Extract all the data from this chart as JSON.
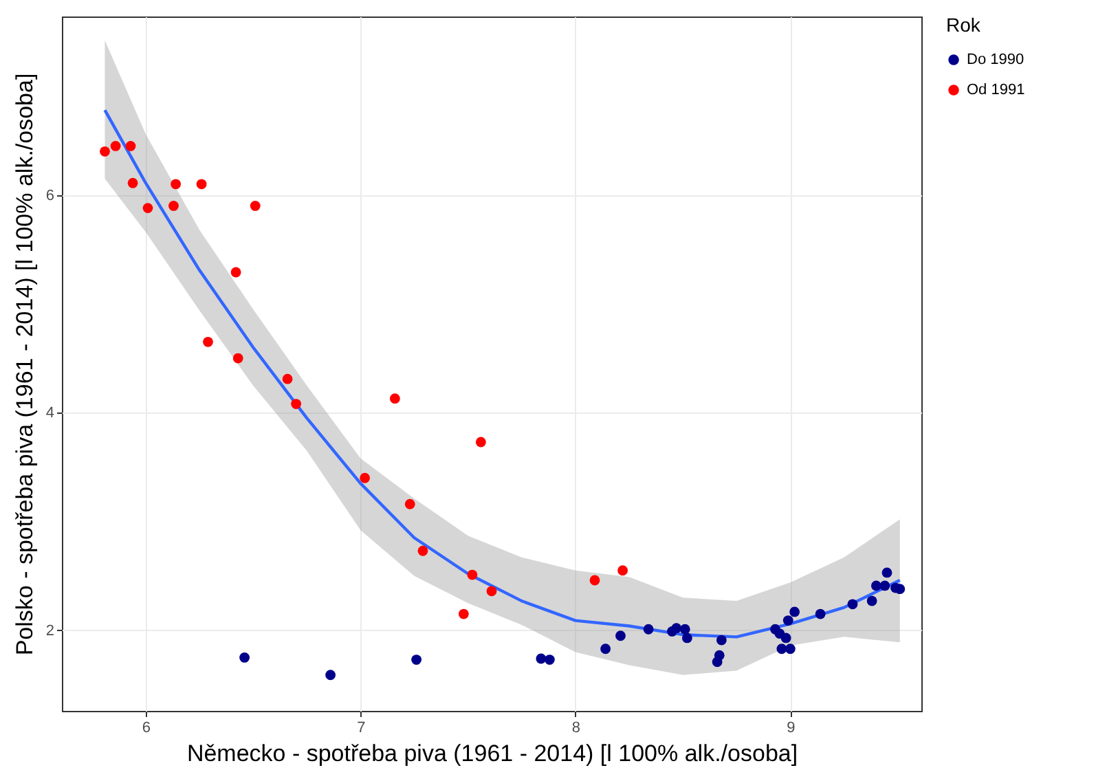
{
  "chart_data": {
    "type": "scatter",
    "xlabel": "Německo - spotřeba piva (1961 - 2014)  [l 100% alk./osoba]",
    "ylabel": "Polsko -  spotřeba piva (1961 - 2014)  [l 100% alk./osoba]",
    "legend_title": "Rok",
    "legend": "right",
    "grid": true,
    "marker": "circle",
    "xlim": [
      5.61,
      9.61
    ],
    "ylim": [
      1.26,
      7.64
    ],
    "xticks": [
      6,
      7,
      8,
      9
    ],
    "yticks": [
      2,
      4,
      6
    ],
    "series": [
      {
        "type": "line",
        "color": "#3366ff",
        "line_style": "solid",
        "marker": "none",
        "x": [
          5.81,
          6.0,
          6.25,
          6.5,
          6.75,
          7.0,
          7.25,
          7.5,
          7.75,
          8.0,
          8.25,
          8.5,
          8.75,
          9.0,
          9.25,
          9.51
        ],
        "values": [
          6.78,
          6.11,
          5.31,
          4.6,
          3.95,
          3.35,
          2.85,
          2.52,
          2.27,
          2.09,
          2.04,
          1.96,
          1.94,
          2.06,
          2.21,
          2.46
        ],
        "upper": [
          7.42,
          6.56,
          5.68,
          4.95,
          4.25,
          3.58,
          3.21,
          2.87,
          2.67,
          2.55,
          2.49,
          2.3,
          2.27,
          2.44,
          2.67,
          3.02
        ],
        "lower": [
          6.15,
          5.66,
          4.94,
          4.25,
          3.65,
          2.92,
          2.5,
          2.25,
          2.05,
          1.8,
          1.68,
          1.59,
          1.63,
          1.86,
          1.94,
          1.89
        ]
      },
      {
        "name": "Do 1990",
        "color": "#00008b",
        "x": [
          6.46,
          6.86,
          7.26,
          7.84,
          7.88,
          8.14,
          8.21,
          8.34,
          8.45,
          8.47,
          8.51,
          8.52,
          8.66,
          8.67,
          8.68,
          8.93,
          8.95,
          8.98,
          8.96,
          9.0,
          8.99,
          9.02,
          9.14,
          9.29,
          9.38,
          9.4,
          9.44,
          9.45,
          9.49,
          9.51
        ],
        "values": [
          1.75,
          1.59,
          1.73,
          1.74,
          1.73,
          1.83,
          1.95,
          2.01,
          1.99,
          2.02,
          2.01,
          1.93,
          1.71,
          1.77,
          1.91,
          2.01,
          1.97,
          1.93,
          1.83,
          1.83,
          2.09,
          2.17,
          2.15,
          2.24,
          2.27,
          2.41,
          2.41,
          2.53,
          2.39,
          2.38
        ]
      },
      {
        "name": "Od 1991",
        "color": "#ff0000",
        "x": [
          5.81,
          5.86,
          5.93,
          5.94,
          6.01,
          6.13,
          6.14,
          6.26,
          6.51,
          6.42,
          6.29,
          6.43,
          6.66,
          6.7,
          7.16,
          7.56,
          7.02,
          7.23,
          7.29,
          7.52,
          7.61,
          7.48,
          8.09,
          8.22
        ],
        "values": [
          6.4,
          6.45,
          6.45,
          6.11,
          5.88,
          5.9,
          6.1,
          6.1,
          5.9,
          5.29,
          4.65,
          4.5,
          4.31,
          4.08,
          4.13,
          3.73,
          3.4,
          3.16,
          2.73,
          2.51,
          2.36,
          2.15,
          2.46,
          2.55
        ]
      }
    ]
  }
}
